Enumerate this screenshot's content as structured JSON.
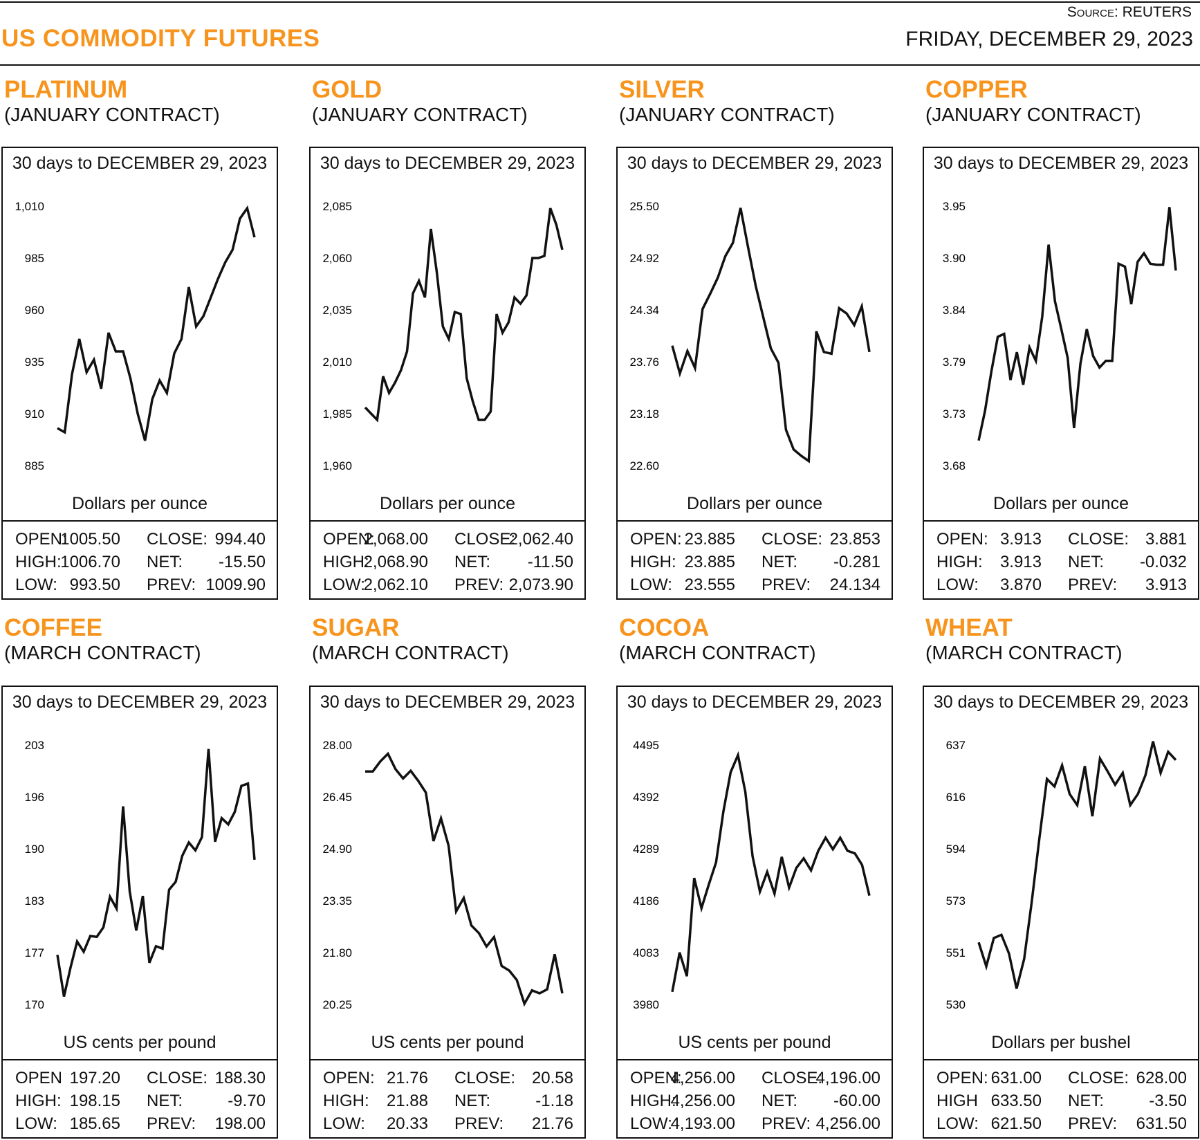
{
  "header": {
    "title": "US COMMODITY FUTURES",
    "source_label": "Source:",
    "source_value": "REUTERS",
    "date": "FRIDAY, DECEMBER 29, 2023",
    "accent_color": "#F7941D"
  },
  "chart_data": [
    {
      "type": "line",
      "name": "PLATINUM",
      "contract": "(JANUARY CONTRACT)",
      "title": "30 days to DECEMBER 29, 2023",
      "ylabel": "Dollars per ounce",
      "yticks": [
        "1,010",
        "985",
        "960",
        "935",
        "910",
        "885"
      ],
      "ylim": [
        885,
        1010
      ],
      "values": [
        903,
        901,
        929,
        946,
        930,
        936,
        922,
        949,
        940,
        940,
        927,
        910,
        897,
        917,
        926,
        920,
        939,
        946,
        971,
        952,
        957,
        966,
        975,
        983,
        989,
        1004,
        1009,
        995
      ],
      "stats": {
        "open_label": "OPEN:",
        "open": "1005.50",
        "high_label": "HIGH:",
        "high": "1006.70",
        "low_label": "LOW:",
        "low": "993.50",
        "close_label": "CLOSE:",
        "close": "994.40",
        "net_label": "NET:",
        "net": "-15.50",
        "prev_label": "PREV:",
        "prev": "1009.90"
      }
    },
    {
      "type": "line",
      "name": "GOLD",
      "contract": "(JANUARY CONTRACT)",
      "title": "30 days to DECEMBER 29, 2023",
      "ylabel": "Dollars per ounce",
      "yticks": [
        "2,085",
        "2,060",
        "2,035",
        "2,010",
        "1,985",
        "1,960"
      ],
      "ylim": [
        1960,
        2085
      ],
      "values": [
        1988,
        1985,
        1982,
        2003,
        1995,
        2000,
        2006,
        2015,
        2043,
        2049,
        2041,
        2074,
        2053,
        2027,
        2021,
        2034,
        2033,
        2002,
        1991,
        1982,
        1982,
        1986,
        2033,
        2024,
        2029,
        2041,
        2038,
        2042,
        2060,
        2060,
        2061,
        2084,
        2076,
        2064
      ],
      "stats": {
        "open_label": "OPEN:",
        "open": "2,068.00",
        "high_label": "HIGH:",
        "high": "2,068.90",
        "low_label": "LOW:",
        "low": "2,062.10",
        "close_label": "CLOSE:",
        "close": "2,062.40",
        "net_label": "NET:",
        "net": "-11.50",
        "prev_label": "PREV:",
        "prev": "2,073.90"
      }
    },
    {
      "type": "line",
      "name": "SILVER",
      "contract": "(JANUARY CONTRACT)",
      "title": "30 days to DECEMBER 29, 2023",
      "ylabel": "Dollars per ounce",
      "yticks": [
        "25.50",
        "24.92",
        "24.34",
        "23.76",
        "23.18",
        "22.60"
      ],
      "ylim": [
        22.6,
        25.5
      ],
      "values": [
        23.94,
        23.63,
        23.88,
        23.69,
        24.35,
        24.52,
        24.7,
        24.94,
        25.09,
        25.48,
        25.04,
        24.61,
        24.26,
        23.91,
        23.75,
        23.0,
        22.78,
        22.71,
        22.65,
        24.1,
        23.87,
        23.85,
        24.36,
        24.3,
        24.17,
        24.38,
        23.87
      ],
      "stats": {
        "open_label": "OPEN:",
        "open": "23.885",
        "high_label": "HIGH:",
        "high": "23.885",
        "low_label": "LOW:",
        "low": "23.555",
        "close_label": "CLOSE:",
        "close": "23.853",
        "net_label": "NET:",
        "net": "-0.281",
        "prev_label": "PREV:",
        "prev": "24.134"
      }
    },
    {
      "type": "line",
      "name": "COPPER",
      "contract": "(JANUARY CONTRACT)",
      "title": "30 days to DECEMBER 29, 2023",
      "ylabel": "Dollars per ounce",
      "yticks": [
        "3.95",
        "3.90",
        "3.84",
        "3.79",
        "3.73",
        "3.68"
      ],
      "ylim": [
        3.68,
        3.95
      ],
      "values": [
        3.706,
        3.737,
        3.778,
        3.814,
        3.817,
        3.769,
        3.798,
        3.764,
        3.803,
        3.789,
        3.835,
        3.91,
        3.851,
        3.822,
        3.792,
        3.719,
        3.786,
        3.822,
        3.794,
        3.782,
        3.789,
        3.789,
        3.89,
        3.887,
        3.848,
        3.892,
        3.901,
        3.89,
        3.889,
        3.889,
        3.949,
        3.883
      ],
      "stats": {
        "open_label": "OPEN:",
        "open": "3.913",
        "high_label": "HIGH:",
        "high": "3.913",
        "low_label": "LOW:",
        "low": "3.870",
        "close_label": "CLOSE:",
        "close": "3.881",
        "net_label": "NET:",
        "net": "-0.032",
        "prev_label": "PREV:",
        "prev": "3.913"
      }
    },
    {
      "type": "line",
      "name": "COFFEE",
      "contract": "(MARCH CONTRACT)",
      "title": "30 days to DECEMBER 29, 2023",
      "ylabel": "US cents per pound",
      "yticks": [
        "203",
        "196",
        "190",
        "183",
        "177",
        "170"
      ],
      "ylim": [
        170,
        203
      ],
      "values": [
        176.3,
        171.0,
        174.7,
        178.0,
        176.7,
        178.7,
        178.6,
        179.8,
        183.7,
        182.2,
        195.2,
        184.4,
        179.4,
        183.8,
        175.3,
        177.4,
        177.1,
        184.6,
        185.6,
        188.9,
        190.6,
        189.6,
        191.3,
        202.5,
        190.7,
        193.7,
        192.9,
        194.5,
        197.8,
        198.1,
        188.4
      ],
      "stats": {
        "open_label": "OPEN",
        "open": "197.20",
        "high_label": "HIGH:",
        "high": "198.15",
        "low_label": "LOW:",
        "low": "185.65",
        "close_label": "CLOSE:",
        "close": "188.30",
        "net_label": "NET:",
        "net": "-9.70",
        "prev_label": "PREV:",
        "prev": "198.00"
      }
    },
    {
      "type": "line",
      "name": "SUGAR",
      "contract": "(MARCH CONTRACT)",
      "title": "30 days to DECEMBER 29, 2023",
      "ylabel": "US cents per pound",
      "yticks": [
        "28.00",
        "26.45",
        "24.90",
        "23.35",
        "21.80",
        "20.25"
      ],
      "ylim": [
        20.25,
        28.0
      ],
      "values": [
        27.21,
        27.21,
        27.51,
        27.74,
        27.28,
        27.0,
        27.23,
        26.93,
        26.58,
        25.13,
        25.81,
        24.99,
        23.03,
        23.43,
        22.61,
        22.38,
        21.98,
        22.26,
        21.4,
        21.26,
        20.98,
        20.27,
        20.67,
        20.58,
        20.7,
        21.75,
        20.58
      ],
      "stats": {
        "open_label": "OPEN:",
        "open": "21.76",
        "high_label": "HIGH:",
        "high": "21.88",
        "low_label": "LOW:",
        "low": "20.33",
        "close_label": "CLOSE:",
        "close": "20.58",
        "net_label": "NET:",
        "net": "-1.18",
        "prev_label": "PREV:",
        "prev": "21.76"
      }
    },
    {
      "type": "line",
      "name": "COCOA",
      "contract": "(MARCH CONTRACT)",
      "title": "30 days to DECEMBER 29, 2023",
      "ylabel": "US cents per pound",
      "yticks": [
        "4495",
        "4392",
        "4289",
        "4186",
        "4083",
        "3980"
      ],
      "ylim": [
        3980,
        4495
      ],
      "values": [
        4005,
        4083,
        4036,
        4231,
        4171,
        4218,
        4262,
        4363,
        4441,
        4475,
        4402,
        4274,
        4204,
        4243,
        4200,
        4273,
        4212,
        4251,
        4270,
        4246,
        4285,
        4311,
        4288,
        4311,
        4285,
        4280,
        4257,
        4196
      ],
      "stats": {
        "open_label": "OPEN:",
        "open": "4,256.00",
        "high_label": "HIGH:",
        "high": "4,256.00",
        "low_label": "LOW:",
        "low": "4,193.00",
        "close_label": "CLOSE:",
        "close": "4,196.00",
        "net_label": "NET:",
        "net": "-60.00",
        "prev_label": "PREV:",
        "prev": "4,256.00"
      }
    },
    {
      "type": "line",
      "name": "WHEAT",
      "contract": "(MARCH CONTRACT)",
      "title": "30 days to DECEMBER 29, 2023",
      "ylabel": "Dollars per bushel",
      "yticks": [
        "637",
        "616",
        "594",
        "573",
        "551",
        "530"
      ],
      "ylim": [
        530,
        637
      ],
      "values": [
        555.6,
        545.7,
        557.4,
        558.7,
        551.0,
        536.5,
        548.8,
        572.3,
        598.3,
        623.0,
        619.9,
        628.6,
        616.8,
        612.2,
        628.3,
        607.6,
        631.4,
        626.2,
        620.6,
        625.5,
        612.2,
        616.8,
        624.6,
        638.5,
        625.5,
        634.2,
        630.8
      ],
      "stats": {
        "open_label": "OPEN:",
        "open": "631.00",
        "high_label": "HIGH",
        "high": "633.50",
        "low_label": "LOW:",
        "low": "621.50",
        "close_label": "CLOSE:",
        "close": "628.00",
        "net_label": "NET:",
        "net": "-3.50",
        "prev_label": "PREV:",
        "prev": "631.50"
      }
    }
  ]
}
